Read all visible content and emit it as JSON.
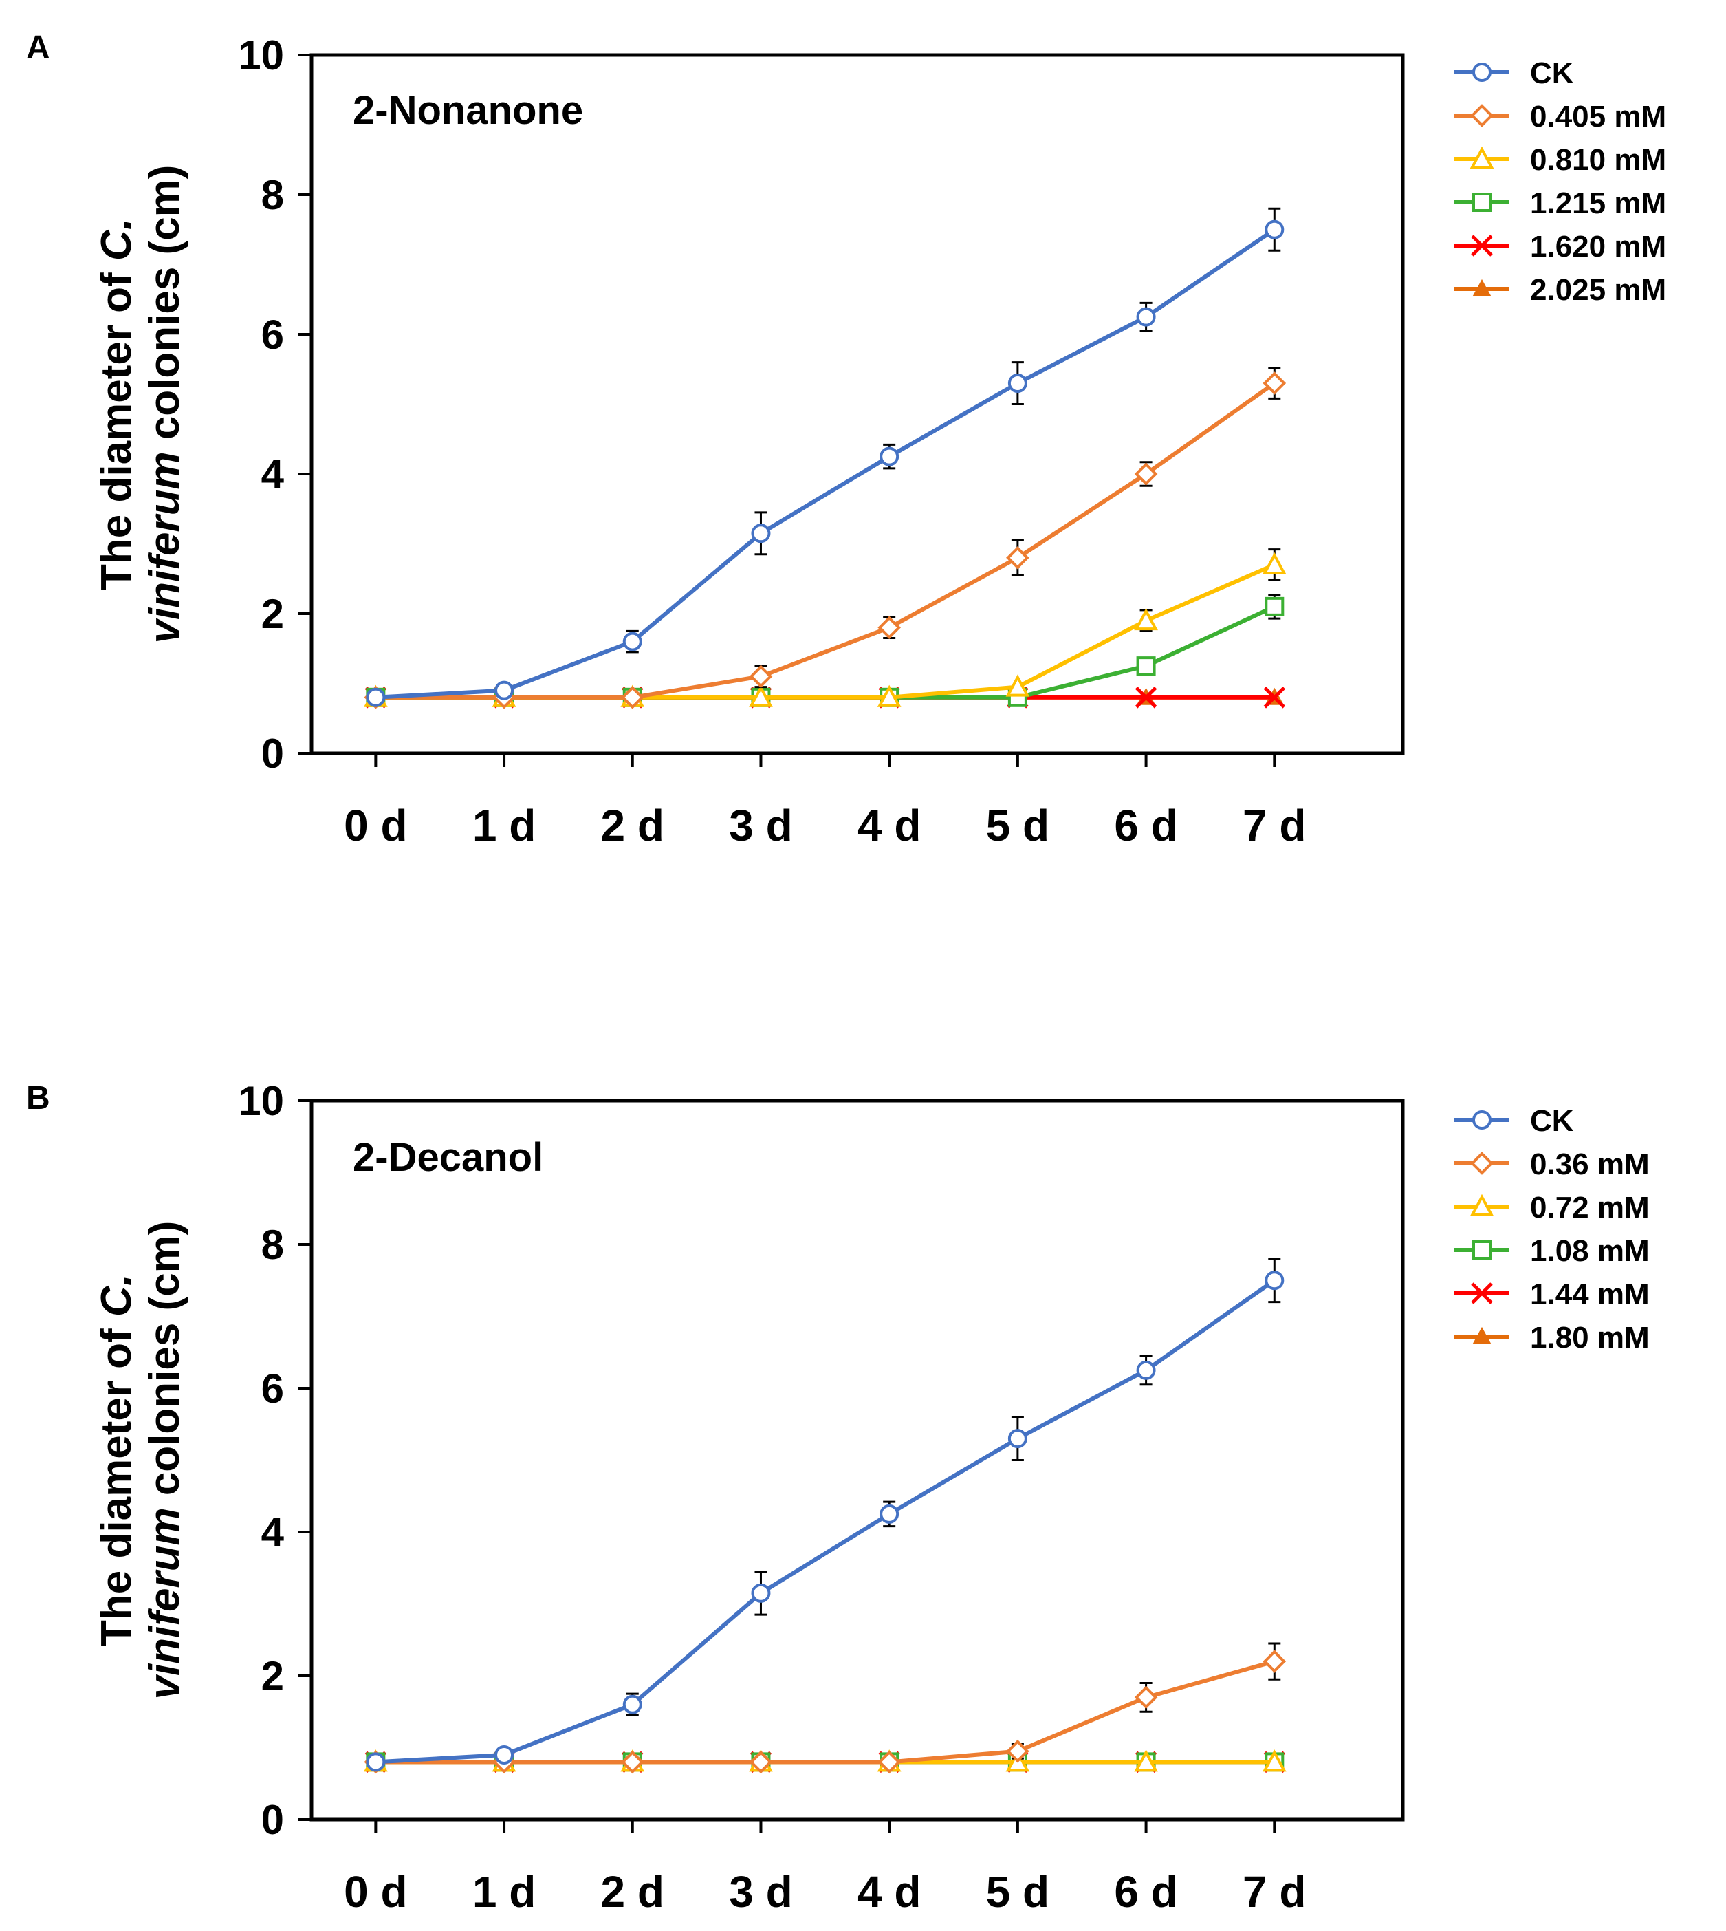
{
  "chart_data": [
    {
      "panel": "A",
      "type": "line",
      "title": "2-Nonanone",
      "ylabel_prefix": "The diameter of ",
      "ylabel_genus": "C.",
      "ylabel_species": "viniferum",
      "ylabel_suffix": " colonies (cm)",
      "categories": [
        "0 d",
        "1 d",
        "2 d",
        "3 d",
        "4 d",
        "5 d",
        "6 d",
        "7 d"
      ],
      "ylim": [
        0,
        10
      ],
      "yticks": [
        0,
        2,
        4,
        6,
        8,
        10
      ],
      "series": [
        {
          "name": "CK",
          "color": "#4472c4",
          "marker": "circle",
          "values": [
            0.8,
            0.9,
            1.6,
            3.15,
            4.25,
            5.3,
            6.25,
            7.5
          ],
          "errors": [
            0.03,
            0.05,
            0.15,
            0.3,
            0.17,
            0.3,
            0.2,
            0.3
          ]
        },
        {
          "name": "0.405 mM",
          "color": "#ed7d31",
          "marker": "diamond",
          "values": [
            0.8,
            0.8,
            0.8,
            1.1,
            1.8,
            2.8,
            4.0,
            5.3
          ],
          "errors": [
            0.02,
            0.02,
            0.03,
            0.15,
            0.15,
            0.25,
            0.17,
            0.22
          ]
        },
        {
          "name": "0.810 mM",
          "color": "#ffc000",
          "marker": "triangle",
          "values": [
            0.8,
            0.8,
            0.8,
            0.8,
            0.8,
            0.95,
            1.9,
            2.7
          ],
          "errors": [
            0.02,
            0.02,
            0.02,
            0.02,
            0.02,
            0.05,
            0.15,
            0.22
          ]
        },
        {
          "name": "1.215 mM",
          "color": "#3cb033",
          "marker": "square",
          "values": [
            0.8,
            0.8,
            0.8,
            0.8,
            0.8,
            0.8,
            1.25,
            2.1
          ],
          "errors": [
            0.02,
            0.02,
            0.02,
            0.02,
            0.02,
            0.02,
            0.05,
            0.17
          ]
        },
        {
          "name": "1.620 mM",
          "color": "#ff0000",
          "marker": "x",
          "values": [
            0.8,
            0.8,
            0.8,
            0.8,
            0.8,
            0.8,
            0.8,
            0.8
          ],
          "errors": [
            0,
            0,
            0,
            0,
            0,
            0,
            0,
            0
          ]
        },
        {
          "name": "2.025 mM",
          "color": "#e46c0a",
          "marker": "tri-filled",
          "values": [
            0.8,
            0.8,
            0.8,
            0.8,
            0.8,
            0.8,
            0.8,
            0.8
          ],
          "errors": [
            0,
            0,
            0,
            0,
            0,
            0,
            0,
            0
          ]
        }
      ]
    },
    {
      "panel": "B",
      "type": "line",
      "title": "2-Decanol",
      "ylabel_prefix": "The diameter of ",
      "ylabel_genus": "C.",
      "ylabel_species": "viniferum",
      "ylabel_suffix": " colonies (cm)",
      "categories": [
        "0 d",
        "1 d",
        "2 d",
        "3 d",
        "4 d",
        "5 d",
        "6 d",
        "7 d"
      ],
      "ylim": [
        0,
        10
      ],
      "yticks": [
        0,
        2,
        4,
        6,
        8,
        10
      ],
      "series": [
        {
          "name": "CK",
          "color": "#4472c4",
          "marker": "circle",
          "values": [
            0.8,
            0.9,
            1.6,
            3.15,
            4.25,
            5.3,
            6.25,
            7.5
          ],
          "errors": [
            0.03,
            0.05,
            0.15,
            0.3,
            0.17,
            0.3,
            0.2,
            0.3
          ]
        },
        {
          "name": "0.36 mM",
          "color": "#ed7d31",
          "marker": "diamond",
          "values": [
            0.8,
            0.8,
            0.8,
            0.8,
            0.8,
            0.95,
            1.7,
            2.2
          ],
          "errors": [
            0.02,
            0.02,
            0.02,
            0.02,
            0.02,
            0.1,
            0.2,
            0.25
          ]
        },
        {
          "name": "0.72 mM",
          "color": "#ffc000",
          "marker": "triangle",
          "values": [
            0.8,
            0.8,
            0.8,
            0.8,
            0.8,
            0.8,
            0.8,
            0.8
          ],
          "errors": [
            0,
            0,
            0,
            0,
            0,
            0,
            0,
            0
          ]
        },
        {
          "name": "1.08 mM",
          "color": "#3cb033",
          "marker": "square",
          "values": [
            0.8,
            0.8,
            0.8,
            0.8,
            0.8,
            0.8,
            0.8,
            0.8
          ],
          "errors": [
            0,
            0,
            0,
            0,
            0,
            0,
            0,
            0
          ]
        },
        {
          "name": "1.44 mM",
          "color": "#ff0000",
          "marker": "x",
          "values": [
            0.8,
            0.8,
            0.8,
            0.8,
            0.8,
            0.8,
            0.8,
            0.8
          ],
          "errors": [
            0,
            0,
            0,
            0,
            0,
            0,
            0,
            0
          ]
        },
        {
          "name": "1.80 mM",
          "color": "#e46c0a",
          "marker": "tri-filled",
          "values": [
            0.8,
            0.8,
            0.8,
            0.8,
            0.8,
            0.8,
            0.8,
            0.8
          ],
          "errors": [
            0,
            0,
            0,
            0,
            0,
            0,
            0,
            0
          ]
        }
      ]
    }
  ]
}
